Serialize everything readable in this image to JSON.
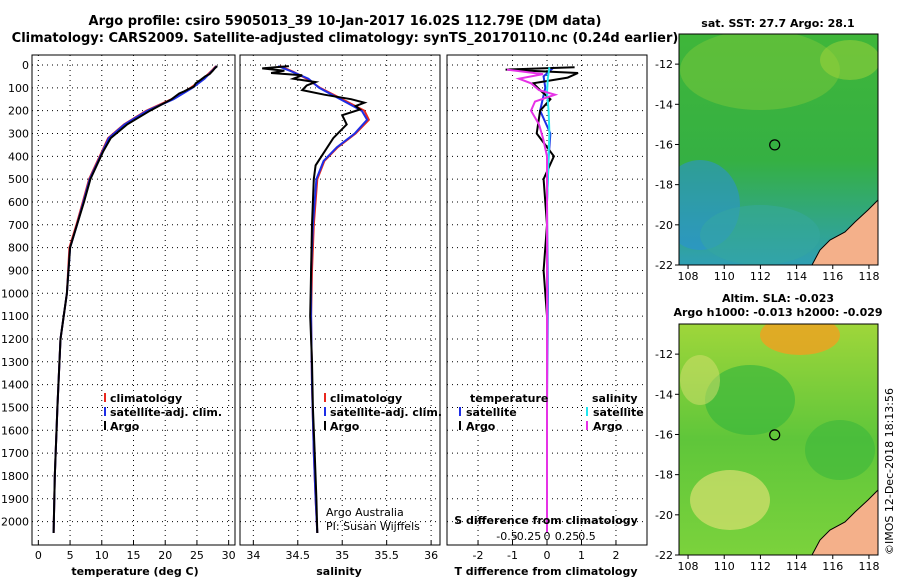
{
  "titles": {
    "line1": "Argo profile: csiro 5905013_39 10-Jan-2017 16.02S 112.79E (DM data)",
    "line2": "Climatology: CARS2009. Satellite-adjusted climatology: synTS_20170110.nc (0.24d earlier)"
  },
  "colors": {
    "climatology": "#e8281e",
    "satellite": "#1e2ee6",
    "argo": "#000000",
    "sal_satellite": "#22e6f0",
    "sal_argo": "#e632e6"
  },
  "chart_data": [
    {
      "type": "line",
      "name": "temperature-profile",
      "xlabel": "temperature (deg C)",
      "ylabel": "",
      "xlim": [
        -1,
        31
      ],
      "ylim": [
        2100,
        0
      ],
      "xticks": [
        0,
        5,
        10,
        15,
        20,
        25,
        30
      ],
      "yticks": [
        0,
        100,
        200,
        300,
        400,
        500,
        600,
        700,
        800,
        900,
        1000,
        1100,
        1200,
        1300,
        1400,
        1500,
        1600,
        1700,
        1800,
        1900,
        2000
      ],
      "legend": [
        "climatology",
        "satellite-adj. clim.",
        "Argo"
      ],
      "series": [
        {
          "name": "climatology",
          "color": "#e8281e",
          "x": [
            28,
            27.5,
            26,
            24,
            21,
            17,
            13.5,
            11,
            10,
            9,
            8,
            7,
            6,
            4.9,
            4.5,
            3.5,
            3,
            2.6,
            2.4
          ],
          "y": [
            5,
            20,
            60,
            100,
            150,
            200,
            260,
            320,
            380,
            440,
            500,
            600,
            700,
            800,
            1000,
            1200,
            1500,
            1800,
            2050
          ]
        },
        {
          "name": "satellite-adj. clim.",
          "color": "#1e2ee6",
          "x": [
            28.1,
            27.6,
            26.2,
            24.3,
            21.3,
            17.2,
            13.6,
            11.1,
            10.1,
            9.1,
            8.1,
            7.1,
            6.1,
            5,
            4.5,
            3.5,
            3,
            2.6,
            2.4
          ],
          "y": [
            5,
            20,
            60,
            100,
            150,
            200,
            260,
            320,
            380,
            440,
            500,
            600,
            700,
            800,
            1000,
            1200,
            1500,
            1800,
            2050
          ]
        },
        {
          "name": "Argo",
          "color": "#000000",
          "x": [
            28.2,
            27.8,
            27.5,
            27,
            26.3,
            25.6,
            24.8,
            24.5,
            23.7,
            23,
            22.2,
            21,
            17.6,
            14,
            11.4,
            10.2,
            9.2,
            8.2,
            7.2,
            6.1,
            5,
            4.5,
            3.5,
            3,
            2.6,
            2.4
          ],
          "y": [
            5,
            15,
            25,
            40,
            50,
            65,
            80,
            95,
            105,
            115,
            125,
            150,
            200,
            260,
            320,
            380,
            440,
            500,
            600,
            700,
            800,
            1000,
            1200,
            1500,
            1800,
            2050
          ]
        }
      ]
    },
    {
      "type": "line",
      "name": "salinity-profile",
      "xlabel": "salinity",
      "ylabel": "",
      "xlim": [
        33.85,
        36.1
      ],
      "ylim": [
        2100,
        0
      ],
      "xticks": [
        34,
        34.5,
        35,
        35.5,
        36
      ],
      "xtick_labels": [
        "34",
        "34.5",
        "35",
        "35.5",
        "36"
      ],
      "legend": [
        "climatology",
        "satellite-adj. clim.",
        "Argo"
      ],
      "series": [
        {
          "name": "climatology",
          "color": "#e8281e",
          "x": [
            34.3,
            34.45,
            34.6,
            34.75,
            35.0,
            35.25,
            35.3,
            35.15,
            34.95,
            34.8,
            34.72,
            34.68,
            34.66,
            34.65,
            34.66,
            34.68,
            34.7,
            34.72
          ],
          "y": [
            5,
            30,
            60,
            100,
            150,
            200,
            240,
            300,
            360,
            420,
            500,
            700,
            900,
            1100,
            1400,
            1700,
            1900,
            2050
          ]
        },
        {
          "name": "satellite-adj. clim.",
          "color": "#1e2ee6",
          "x": [
            34.28,
            34.44,
            34.62,
            34.74,
            34.98,
            35.22,
            35.28,
            35.14,
            34.94,
            34.79,
            34.71,
            34.67,
            34.65,
            34.65,
            34.66,
            34.68,
            34.7,
            34.72
          ],
          "y": [
            5,
            30,
            60,
            100,
            150,
            200,
            240,
            300,
            360,
            420,
            500,
            700,
            900,
            1100,
            1400,
            1700,
            1900,
            2050
          ]
        },
        {
          "name": "Argo",
          "color": "#000000",
          "x": [
            34.4,
            34.1,
            34.35,
            34.2,
            34.55,
            34.45,
            34.7,
            34.6,
            34.55,
            34.8,
            35.1,
            35.25,
            35.15,
            35.2,
            35.0,
            35.05,
            34.9,
            34.8,
            34.7,
            34.68,
            34.66,
            34.65,
            34.64,
            34.66,
            34.67,
            34.69,
            34.71,
            34.72
          ],
          "y": [
            5,
            15,
            25,
            35,
            45,
            60,
            75,
            90,
            110,
            130,
            150,
            165,
            180,
            195,
            220,
            260,
            320,
            380,
            440,
            500,
            700,
            900,
            1100,
            1300,
            1500,
            1700,
            1900,
            2050
          ]
        }
      ],
      "annotations": [
        "Argo Australia",
        "PI: Susan Wijffels"
      ]
    },
    {
      "type": "line",
      "name": "difference-profile",
      "xlabel": "T difference from climatology",
      "ylabel": "",
      "xlim": [
        -2.9,
        2.9
      ],
      "ylim": [
        2100,
        0
      ],
      "xticks": [
        -2,
        -1,
        0,
        1,
        2
      ],
      "xtick_labels": [
        "-2",
        "-1",
        "0",
        "1",
        "2"
      ],
      "xlabel2": "S difference from climatology",
      "xticks2": [
        -0.5,
        -0.25,
        0,
        0.25,
        0.5
      ],
      "xtick_labels2": [
        "-0.5",
        "-0.25",
        "0",
        "0.25",
        "0.5"
      ],
      "legend_left_title": "temperature",
      "legend_right_title": "salinity",
      "legend_left": [
        "satellite",
        "Argo"
      ],
      "legend_right": [
        "satellite",
        "Argo"
      ],
      "series": [
        {
          "name": "temperature satellite",
          "color": "#1e2ee6",
          "x": [
            0.2,
            -0.1,
            -0.05,
            -0.2,
            0.1,
            0.05,
            0.0,
            0.02,
            0.0,
            0.0
          ],
          "y": [
            10,
            50,
            100,
            200,
            300,
            400,
            600,
            1000,
            1500,
            2050
          ]
        },
        {
          "name": "temperature Argo",
          "color": "#000000",
          "x": [
            0.8,
            -1.2,
            0.9,
            0.6,
            -0.4,
            -0.2,
            0.1,
            -0.2,
            -0.3,
            0.2,
            -0.1,
            0.0,
            -0.1,
            0.0,
            0.0,
            0.0
          ],
          "y": [
            10,
            20,
            35,
            55,
            80,
            110,
            150,
            200,
            300,
            400,
            500,
            700,
            900,
            1100,
            1500,
            2050
          ]
        },
        {
          "name": "salinity satellite",
          "color": "#22e6f0",
          "x": [
            0.03,
            0.01,
            0.0,
            0.02,
            0.03,
            0.02,
            0.0,
            0.0,
            0.0
          ],
          "y": [
            10,
            60,
            120,
            200,
            300,
            400,
            600,
            1000,
            2050
          ]
        },
        {
          "name": "salinity Argo",
          "color": "#e632e6",
          "x": [
            -0.5,
            -0.05,
            -0.35,
            -0.2,
            -0.1,
            0.1,
            -0.15,
            -0.2,
            -0.1,
            -0.05,
            0.0,
            0.0,
            0.0
          ],
          "y": [
            20,
            40,
            60,
            80,
            110,
            130,
            160,
            200,
            260,
            320,
            400,
            600,
            2050
          ]
        }
      ]
    }
  ],
  "maps": [
    {
      "name": "sst-map",
      "title": "sat. SST: 27.7 Argo: 28.1",
      "xticks": [
        "108",
        "110",
        "112",
        "114",
        "116",
        "118"
      ],
      "yticks": [
        "-12",
        "-14",
        "-16",
        "-18",
        "-20",
        "-22"
      ],
      "marker": {
        "lon": 112.79,
        "lat": -16.02
      },
      "lon_range": [
        107.5,
        118.5
      ],
      "lat_range": [
        -22,
        -10.5
      ]
    },
    {
      "name": "sla-map",
      "title_line1": "Altim. SLA: -0.023",
      "title_line2": "Argo h1000: -0.013 h2000: -0.029",
      "xticks": [
        "108",
        "110",
        "112",
        "114",
        "116",
        "118"
      ],
      "yticks": [
        "-12",
        "-14",
        "-16",
        "-18",
        "-20",
        "-22"
      ],
      "marker": {
        "lon": 112.79,
        "lat": -16.02
      },
      "lon_range": [
        107.5,
        118.5
      ],
      "lat_range": [
        -22,
        -10.5
      ]
    }
  ],
  "credit": "©IMOS 12-Dec-2018 18:13:56"
}
